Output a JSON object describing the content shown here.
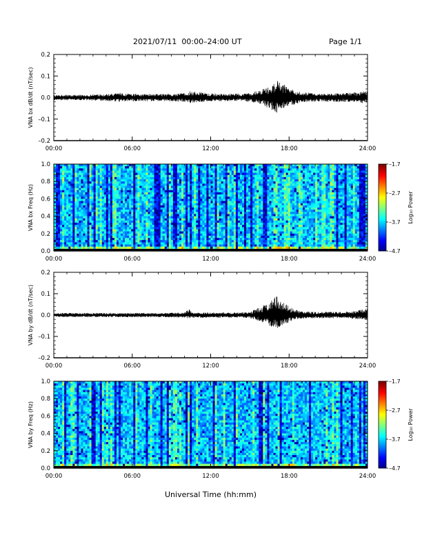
{
  "header": {
    "title": "2021/07/11  00:00–24:00 UT",
    "page": "Page 1/1"
  },
  "chart_data": [
    {
      "type": "line",
      "panel": "bx-time-series",
      "ylabel": "VNA bx dB/dt (nT/sec)",
      "xlim": [
        "00:00",
        "24:00"
      ],
      "ylim": [
        -0.2,
        0.2
      ],
      "yticks": [
        "0.2",
        "0.1",
        "0.0",
        "–0.1",
        "–0.2"
      ],
      "xticks": [
        "00:00",
        "06:00",
        "12:00",
        "18:00",
        "24:00"
      ],
      "series_color": "#000000",
      "envelope": {
        "hours": [
          0,
          2,
          4,
          5,
          6,
          8,
          10,
          10.5,
          12,
          14,
          15,
          15.8,
          16.4,
          17,
          17.4,
          18,
          18.5,
          19,
          20,
          22,
          23.5,
          24
        ],
        "upper": [
          0.012,
          0.013,
          0.016,
          0.022,
          0.018,
          0.016,
          0.022,
          0.03,
          0.02,
          0.018,
          0.02,
          0.035,
          0.055,
          0.08,
          0.07,
          0.045,
          0.03,
          0.025,
          0.02,
          0.02,
          0.028,
          0.035
        ],
        "lower": [
          -0.012,
          -0.013,
          -0.016,
          -0.02,
          -0.018,
          -0.016,
          -0.02,
          -0.025,
          -0.018,
          -0.016,
          -0.02,
          -0.03,
          -0.05,
          -0.075,
          -0.06,
          -0.04,
          -0.03,
          -0.022,
          -0.02,
          -0.02,
          -0.025,
          -0.03
        ]
      }
    },
    {
      "type": "heatmap",
      "panel": "bx-spectrogram",
      "ylabel": "VNA bx Freq (Hz)",
      "xlim": [
        "00:00",
        "24:00"
      ],
      "ylim": [
        0.0,
        1.0
      ],
      "yticks": [
        "1.0",
        "0.8",
        "0.6",
        "0.4",
        "0.2",
        "0.0"
      ],
      "xticks": [
        "00:00",
        "06:00",
        "12:00",
        "18:00",
        "24:00"
      ],
      "colorbar": {
        "label": "Log₁₀ Power",
        "ticks": [
          "–1.7",
          "–2.7",
          "–3.7",
          "–4.7"
        ],
        "range": [
          -4.7,
          -1.7
        ]
      }
    },
    {
      "type": "line",
      "panel": "by-time-series",
      "ylabel": "VNA by dB/dt (nT/sec)",
      "xlim": [
        "00:00",
        "24:00"
      ],
      "ylim": [
        -0.2,
        0.2
      ],
      "yticks": [
        "0.2",
        "0.1",
        "0.0",
        "–0.1",
        "–0.2"
      ],
      "xticks": [
        "00:00",
        "06:00",
        "12:00",
        "18:00",
        "24:00"
      ],
      "series_color": "#000000",
      "envelope": {
        "hours": [
          0,
          2,
          4,
          6,
          8,
          10,
          10.3,
          10.6,
          12,
          14,
          15,
          15.8,
          16.4,
          17,
          17.4,
          18,
          18.5,
          19,
          20,
          22,
          23.5,
          24
        ],
        "upper": [
          0.01,
          0.01,
          0.01,
          0.01,
          0.01,
          0.012,
          0.03,
          0.012,
          0.012,
          0.012,
          0.015,
          0.04,
          0.055,
          0.09,
          0.07,
          0.04,
          0.025,
          0.02,
          0.015,
          0.015,
          0.025,
          0.03
        ],
        "lower": [
          -0.01,
          -0.01,
          -0.01,
          -0.01,
          -0.01,
          -0.012,
          -0.015,
          -0.012,
          -0.012,
          -0.012,
          -0.015,
          -0.03,
          -0.05,
          -0.07,
          -0.05,
          -0.035,
          -0.02,
          -0.018,
          -0.015,
          -0.015,
          -0.02,
          -0.025
        ]
      }
    },
    {
      "type": "heatmap",
      "panel": "by-spectrogram",
      "ylabel": "VNA by Freq (Hz)",
      "xlim": [
        "00:00",
        "24:00"
      ],
      "ylim": [
        0.0,
        1.0
      ],
      "yticks": [
        "1.0",
        "0.8",
        "0.6",
        "0.4",
        "0.2",
        "0.0"
      ],
      "xticks": [
        "00:00",
        "06:00",
        "12:00",
        "18:00",
        "24:00"
      ],
      "colorbar": {
        "label": "Log₁₀ Power",
        "ticks": [
          "–1.7",
          "–2.7",
          "–3.7",
          "–4.7"
        ],
        "range": [
          -4.7,
          -1.7
        ]
      }
    }
  ],
  "xlabel": "Universal Time (hh:mm)"
}
